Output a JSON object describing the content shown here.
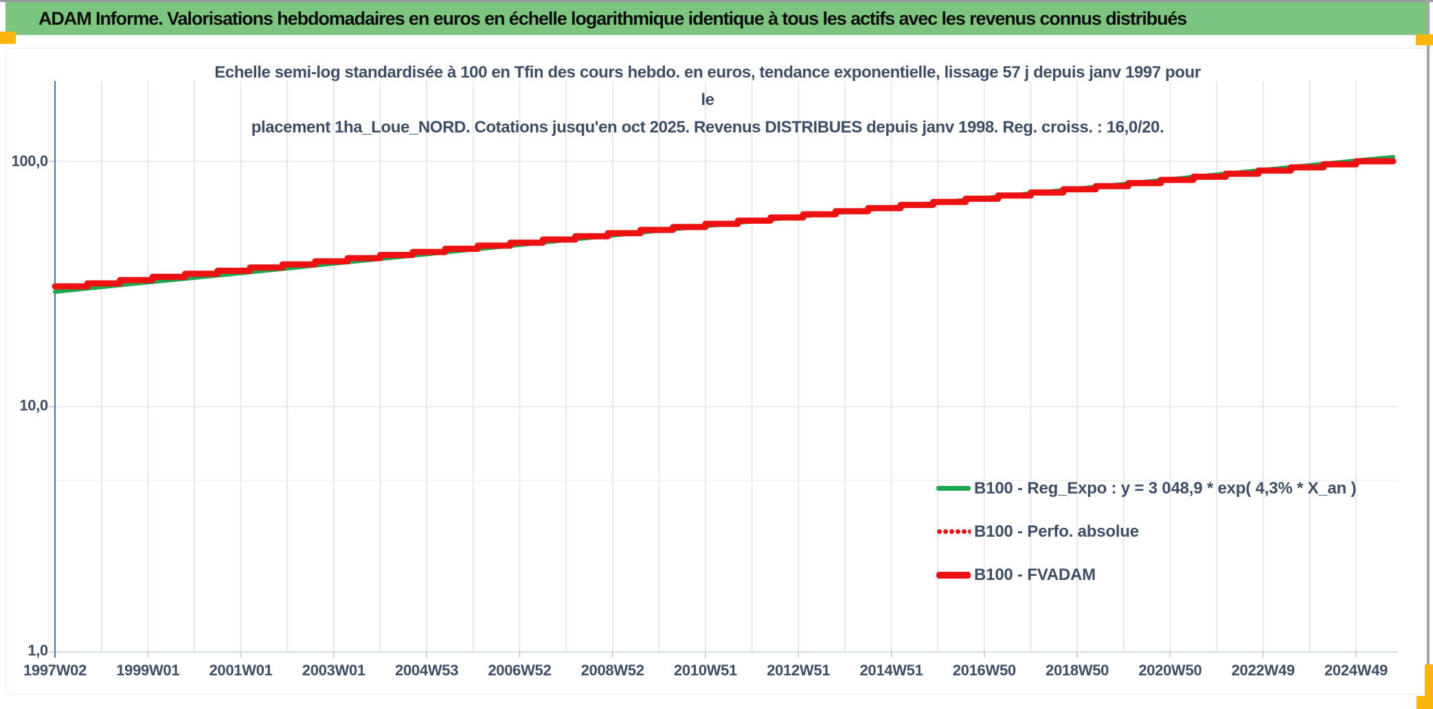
{
  "page": {
    "header_title": "ADAM Informe. Valorisations hebdomadaires en euros en échelle logarithmique identique à tous les actifs avec les revenus connus distribués",
    "colors": {
      "header_bg": "#7CC57E",
      "corner_yellow": "#FBB60C",
      "title_text": "#0D0D0D",
      "chart_text": "#3E4D66",
      "green_series": "#19A74F",
      "red_series": "#EE1111",
      "gridline": "#DFE3EA",
      "axis_line": "#4472C4"
    }
  },
  "chart": {
    "subtitle_line1": "Echelle semi-log standardisée à 100 en Tfin des cours hebdo. en euros, tendance exponentielle, lissage 57 j depuis janv 1997 pour le",
    "subtitle_line2": "placement 1ha_Loue_NORD. Cotations jusqu'en oct 2025. Revenus DISTRIBUES depuis janv 1998. Reg. croiss. : 16,0/20."
  },
  "chart_data": {
    "type": "line",
    "title": "Echelle semi-log standardisée à 100 en Tfin des cours hebdo. en euros, tendance exponentielle, lissage 57 j depuis janv 1997 pour le placement 1ha_Loue_NORD. Cotations jusqu'en oct 2025. Revenus DISTRIBUES depuis janv 1998. Reg. croiss. : 16,0/20.",
    "x_axis": {
      "tick_labels": [
        "1997W02",
        "1999W01",
        "2001W01",
        "2003W01",
        "2004W53",
        "2006W52",
        "2008W52",
        "2010W51",
        "2012W51",
        "2014W51",
        "2016W50",
        "2018W50",
        "2020W50",
        "2022W49",
        "2024W49"
      ],
      "tick_positions_years": [
        0,
        2,
        4,
        6,
        8,
        10,
        12,
        14,
        16,
        18,
        20,
        22,
        24,
        26,
        28
      ],
      "range_years": [
        0,
        28.8
      ],
      "gridline_every_years": 1
    },
    "y_axis": {
      "scale": "log10",
      "tick_labels": [
        "1,0",
        "10,0",
        "100,0"
      ],
      "tick_values": [
        1,
        10,
        100
      ],
      "minor_gridline_values": [
        5
      ],
      "ylim": [
        1,
        210
      ]
    },
    "legend_position": "right-middle",
    "series": [
      {
        "name": "B100 - Reg_Expo : y = 3 048,9 * exp( 4,3% *  X_an )",
        "color": "#19A74F",
        "style": "solid",
        "stroke_width": 6,
        "interpolation": "linear",
        "t_years": [
          0,
          1,
          2,
          3,
          4,
          5,
          6,
          7,
          8,
          9,
          10,
          11,
          12,
          13,
          14,
          15,
          16,
          17,
          18,
          19,
          20,
          21,
          22,
          23,
          24,
          25,
          26,
          27,
          28,
          28.8
        ],
        "values": [
          29.4,
          30.7,
          32.1,
          33.5,
          35.0,
          36.6,
          38.3,
          40.0,
          41.8,
          43.7,
          45.6,
          47.7,
          49.8,
          52.1,
          54.4,
          56.9,
          59.4,
          62.1,
          64.9,
          67.8,
          70.8,
          74.0,
          77.4,
          80.8,
          84.5,
          88.3,
          92.2,
          96.4,
          100.7,
          104.1
        ]
      },
      {
        "name": "B100 - Perfo. absolue",
        "color": "#EE1111",
        "style": "dotted",
        "stroke_width": 5,
        "interpolation": "step-after",
        "t_years": [
          0,
          0.7,
          1.4,
          2.1,
          2.8,
          3.5,
          4.2,
          4.9,
          5.6,
          6.3,
          7.0,
          7.7,
          8.4,
          9.1,
          9.8,
          10.5,
          11.2,
          11.9,
          12.6,
          13.3,
          14.0,
          14.7,
          15.4,
          16.1,
          16.8,
          17.5,
          18.2,
          18.9,
          19.6,
          20.3,
          21.0,
          21.7,
          22.4,
          23.1,
          23.8,
          24.5,
          25.2,
          25.9,
          26.6,
          27.3,
          28.0,
          28.8
        ],
        "values": [
          30.9,
          31.8,
          32.8,
          33.8,
          34.8,
          35.8,
          36.9,
          38.0,
          39.1,
          40.3,
          41.5,
          42.7,
          44.0,
          45.3,
          46.6,
          48.0,
          49.5,
          50.9,
          52.5,
          54.0,
          55.6,
          57.3,
          59.0,
          60.8,
          62.6,
          64.4,
          66.4,
          68.3,
          70.4,
          72.5,
          74.6,
          76.9,
          79.2,
          81.5,
          84.0,
          86.5,
          89.0,
          91.7,
          94.4,
          97.2,
          100.0,
          100.0
        ]
      },
      {
        "name": "B100 - FVADAM",
        "color": "#EE1111",
        "style": "solid",
        "stroke_width": 9,
        "interpolation": "step-after",
        "t_years": [
          0,
          0.7,
          1.4,
          2.1,
          2.8,
          3.5,
          4.2,
          4.9,
          5.6,
          6.3,
          7.0,
          7.7,
          8.4,
          9.1,
          9.8,
          10.5,
          11.2,
          11.9,
          12.6,
          13.3,
          14.0,
          14.7,
          15.4,
          16.1,
          16.8,
          17.5,
          18.2,
          18.9,
          19.6,
          20.3,
          21.0,
          21.7,
          22.4,
          23.1,
          23.8,
          24.5,
          25.2,
          25.9,
          26.6,
          27.3,
          28.0,
          28.8
        ],
        "values": [
          30.9,
          31.8,
          32.8,
          33.8,
          34.8,
          35.8,
          36.9,
          38.0,
          39.1,
          40.3,
          41.5,
          42.7,
          44.0,
          45.3,
          46.6,
          48.0,
          49.5,
          50.9,
          52.5,
          54.0,
          55.6,
          57.3,
          59.0,
          60.8,
          62.6,
          64.4,
          66.4,
          68.3,
          70.4,
          72.5,
          74.6,
          76.9,
          79.2,
          81.5,
          84.0,
          86.5,
          89.0,
          91.7,
          94.4,
          97.2,
          100.0,
          100.0
        ]
      }
    ]
  }
}
